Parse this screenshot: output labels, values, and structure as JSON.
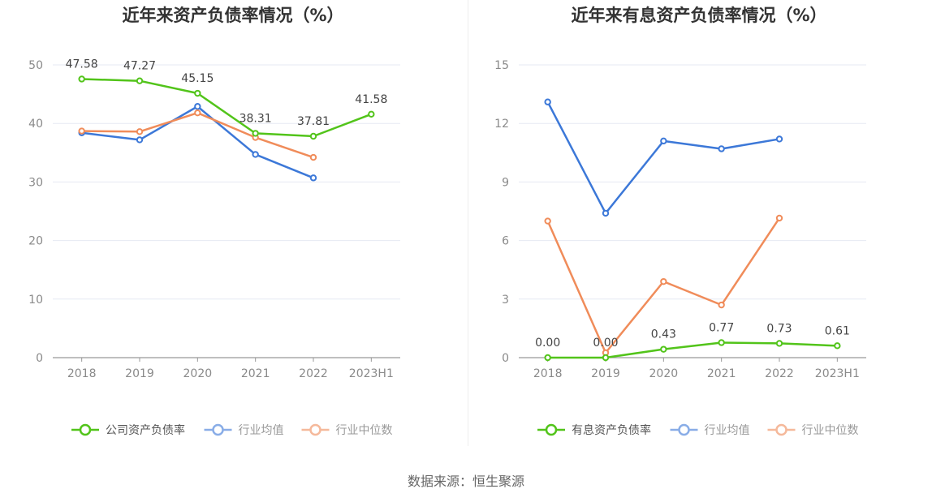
{
  "colors": {
    "company": "#52c41a",
    "avg": "#3c78d8",
    "median": "#f08c5a",
    "grid": "#e6e9f3",
    "axis": "#999999"
  },
  "chart_data": [
    {
      "type": "line",
      "title": "近年来资产负债率情况（%）",
      "categories": [
        "2018",
        "2019",
        "2020",
        "2021",
        "2022",
        "2023H1"
      ],
      "ylim": [
        0,
        50
      ],
      "yticks": [
        0,
        10,
        20,
        30,
        40,
        50
      ],
      "grid": true,
      "legend_position": "bottom",
      "series": [
        {
          "name": "公司资产负债率",
          "key": "company",
          "values": [
            47.58,
            47.27,
            45.15,
            38.31,
            37.81,
            41.58
          ],
          "labels": [
            "47.58",
            "47.27",
            "45.15",
            "38.31",
            "37.81",
            "41.58"
          ]
        },
        {
          "name": "行业均值",
          "key": "avg",
          "values": [
            38.4,
            37.2,
            42.9,
            34.7,
            30.7,
            null
          ]
        },
        {
          "name": "行业中位数",
          "key": "median",
          "values": [
            38.7,
            38.6,
            41.8,
            37.6,
            34.2,
            null
          ]
        }
      ]
    },
    {
      "type": "line",
      "title": "近年来有息资产负债率情况（%）",
      "categories": [
        "2018",
        "2019",
        "2020",
        "2021",
        "2022",
        "2023H1"
      ],
      "ylim": [
        0,
        15
      ],
      "yticks": [
        0,
        3,
        6,
        9,
        12,
        15
      ],
      "grid": true,
      "legend_position": "bottom",
      "series": [
        {
          "name": "有息资产负债率",
          "key": "company",
          "values": [
            0.0,
            0.0,
            0.43,
            0.77,
            0.73,
            0.61
          ],
          "labels": [
            "0.00",
            "0.00",
            "0.43",
            "0.77",
            "0.73",
            "0.61"
          ]
        },
        {
          "name": "行业均值",
          "key": "avg",
          "values": [
            13.1,
            7.4,
            11.1,
            10.7,
            11.2,
            null
          ]
        },
        {
          "name": "行业中位数",
          "key": "median",
          "values": [
            7.0,
            0.25,
            3.9,
            2.7,
            7.15,
            null
          ]
        }
      ]
    }
  ],
  "footer": {
    "source": "数据来源：恒生聚源"
  }
}
